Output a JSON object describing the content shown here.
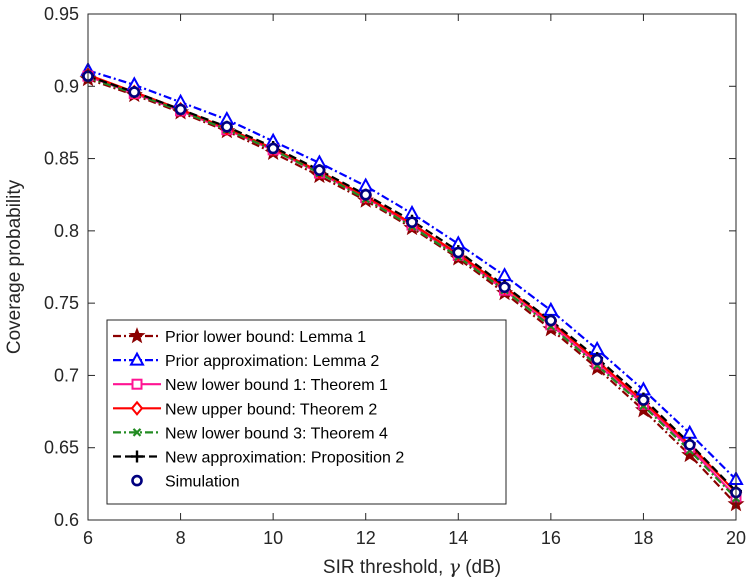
{
  "chart_data": {
    "type": "line",
    "title": "",
    "xlabel_text": "SIR threshold, ",
    "xlabel_symbol": "γ",
    "xlabel_unit": " (dB)",
    "ylabel": "Coverage probability",
    "xlim": [
      6,
      20
    ],
    "ylim": [
      0.6,
      0.95
    ],
    "xticks": [
      6,
      8,
      10,
      12,
      14,
      16,
      18,
      20
    ],
    "yticks": [
      0.6,
      0.65,
      0.7,
      0.75,
      0.8,
      0.85,
      0.9,
      0.95
    ],
    "ytick_labels": [
      "0.6",
      "0.65",
      "0.7",
      "0.75",
      "0.8",
      "0.85",
      "0.9",
      "0.95"
    ],
    "grid": false,
    "legend_position": "bottom-left",
    "x": [
      6,
      7,
      8,
      9,
      10,
      11,
      12,
      13,
      14,
      15,
      16,
      17,
      18,
      19,
      20
    ],
    "series": [
      {
        "name": "Prior lower bound: Lemma 1",
        "color": "#8b0000",
        "dash": "dashdot",
        "marker": "star",
        "values": [
          0.905,
          0.894,
          0.882,
          0.869,
          0.854,
          0.838,
          0.821,
          0.802,
          0.781,
          0.757,
          0.732,
          0.705,
          0.676,
          0.645,
          0.611
        ]
      },
      {
        "name": "Prior approximation: Lemma 2",
        "color": "#0000ff",
        "dash": "dashdot",
        "marker": "triangle",
        "values": [
          0.911,
          0.901,
          0.889,
          0.877,
          0.862,
          0.847,
          0.831,
          0.812,
          0.791,
          0.769,
          0.745,
          0.718,
          0.69,
          0.66,
          0.628
        ]
      },
      {
        "name": "New lower bound 1: Theorem 1",
        "color": "#ff1493",
        "dash": "solid",
        "marker": "square",
        "values": [
          0.907,
          0.895,
          0.883,
          0.87,
          0.856,
          0.84,
          0.823,
          0.804,
          0.783,
          0.759,
          0.735,
          0.708,
          0.68,
          0.65,
          0.616
        ]
      },
      {
        "name": "New upper bound: Theorem 2",
        "color": "#ff0000",
        "dash": "solid",
        "marker": "diamond",
        "values": [
          0.908,
          0.896,
          0.884,
          0.871,
          0.857,
          0.841,
          0.824,
          0.805,
          0.784,
          0.761,
          0.737,
          0.71,
          0.682,
          0.652,
          0.619
        ]
      },
      {
        "name": "New lower bound 3: Theorem 4",
        "color": "#228b22",
        "dash": "dashdot",
        "marker": "x",
        "values": [
          0.906,
          0.895,
          0.883,
          0.87,
          0.856,
          0.84,
          0.822,
          0.803,
          0.782,
          0.759,
          0.734,
          0.707,
          0.679,
          0.648,
          0.615
        ]
      },
      {
        "name": "New approximation: Proposition 2",
        "color": "#000000",
        "dash": "dashed",
        "marker": "plus",
        "values": [
          0.907,
          0.896,
          0.884,
          0.872,
          0.858,
          0.842,
          0.825,
          0.807,
          0.786,
          0.762,
          0.738,
          0.712,
          0.684,
          0.653,
          0.62
        ]
      },
      {
        "name": "Simulation",
        "color": "#00007f",
        "dash": "none",
        "marker": "circle",
        "values": [
          0.907,
          0.896,
          0.884,
          0.872,
          0.857,
          0.842,
          0.825,
          0.806,
          0.785,
          0.761,
          0.738,
          0.711,
          0.683,
          0.652,
          0.619
        ]
      }
    ]
  }
}
